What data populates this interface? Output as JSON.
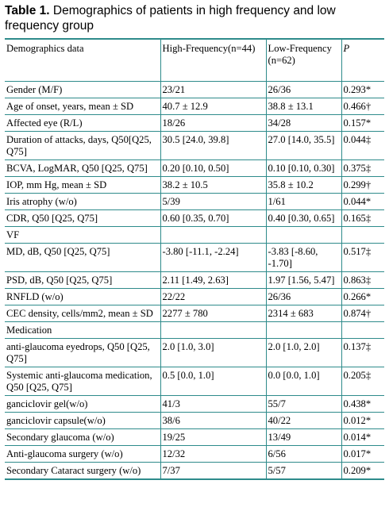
{
  "caption": {
    "label": "Table 1.",
    "text": "Demographics of patients in high frequency and low frequency group"
  },
  "columns": [
    "Demographics data",
    "High-Frequency(n=44)",
    "Low-Frequency (n=62)",
    "P"
  ],
  "rows": [
    [
      "Gender (M/F)",
      "23/21",
      "26/36",
      "0.293*"
    ],
    [
      "Age of onset, years, mean ± SD",
      "40.7 ± 12.9",
      "38.8 ± 13.1",
      "0.466†"
    ],
    [
      "Affected eye (R/L)",
      "18/26",
      "34/28",
      "0.157*"
    ],
    [
      "Duration of attacks, days, Q50[Q25, Q75]",
      "30.5 [24.0, 39.8]",
      "27.0 [14.0, 35.5]",
      "0.044‡"
    ],
    [
      "BCVA, LogMAR, Q50 [Q25, Q75]",
      "0.20 [0.10, 0.50]",
      "0.10 [0.10, 0.30]",
      "0.375‡"
    ],
    [
      "IOP, mm Hg, mean ± SD",
      "38.2 ± 10.5",
      "35.8 ± 10.2",
      "0.299†"
    ],
    [
      "Iris atrophy (w/o)",
      "5/39",
      "1/61",
      "0.044*"
    ],
    [
      "CDR, Q50 [Q25, Q75]",
      "0.60 [0.35, 0.70]",
      "0.40 [0.30, 0.65]",
      "0.165‡"
    ],
    [
      "VF",
      "",
      "",
      ""
    ],
    [
      "MD, dB, Q50 [Q25, Q75]",
      "-3.80 [-11.1, -2.24]",
      "-3.83 [-8.60, -1.70]",
      "0.517‡"
    ],
    [
      "PSD, dB, Q50 [Q25, Q75]",
      "2.11 [1.49, 2.63]",
      "1.97 [1.56, 5.47]",
      "0.863‡"
    ],
    [
      "RNFLD (w/o)",
      "22/22",
      "26/36",
      "0.266*"
    ],
    [
      "CEC density, cells/mm2, mean ± SD",
      "2277 ± 780",
      "2314 ± 683",
      "0.874†"
    ],
    [
      "Medication",
      "",
      "",
      ""
    ],
    [
      "anti-glaucoma eyedrops, Q50 [Q25, Q75]",
      "2.0 [1.0, 3.0]",
      "2.0 [1.0, 2.0]",
      "0.137‡"
    ],
    [
      "Systemic anti-glaucoma medication, Q50 [Q25, Q75]",
      "0.5 [0.0, 1.0]",
      "0.0 [0.0, 1.0]",
      "0.205‡"
    ],
    [
      "ganciclovir gel(w/o)",
      "41/3",
      "55/7",
      "0.438*"
    ],
    [
      "ganciclovir capsule(w/o)",
      "38/6",
      "40/22",
      "0.012*"
    ],
    [
      "Secondary glaucoma (w/o)",
      "19/25",
      "13/49",
      "0.014*"
    ],
    [
      "Anti-glaucoma surgery (w/o)",
      "12/32",
      "6/56",
      "0.017*"
    ],
    [
      "Secondary Cataract surgery (w/o)",
      "7/37",
      "5/57",
      "0.209*"
    ]
  ]
}
